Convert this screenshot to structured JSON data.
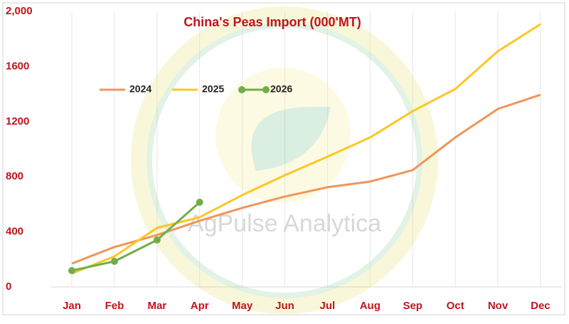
{
  "chart_data": {
    "type": "line",
    "title": "China's Peas Import (000'MT)",
    "watermark": "AgPulse Analytica",
    "categories": [
      "Jan",
      "Feb",
      "Mar",
      "Apr",
      "May",
      "Jun",
      "Jul",
      "Aug",
      "Sep",
      "Oct",
      "Nov",
      "Dec"
    ],
    "series": [
      {
        "name": "2024",
        "color": "#f0955a",
        "markers": false,
        "values": [
          170,
          290,
          377,
          480,
          574,
          656,
          724,
          765,
          848,
          1085,
          1292,
          1395
        ]
      },
      {
        "name": "2025",
        "color": "#fdc626",
        "markers": false,
        "values": [
          98,
          222,
          429,
          506,
          667,
          811,
          946,
          1085,
          1276,
          1437,
          1711,
          1907
        ]
      },
      {
        "name": "2026",
        "color": "#72ad47",
        "markers": true,
        "values": [
          119,
          186,
          341,
          615,
          null,
          null,
          null,
          null,
          null,
          null,
          null,
          null
        ]
      }
    ],
    "ylim": [
      0,
      2000
    ],
    "yticks": [
      0,
      400,
      800,
      1200,
      1600,
      {
        "value": 2000,
        "label": "2,000"
      }
    ],
    "grid": true
  }
}
